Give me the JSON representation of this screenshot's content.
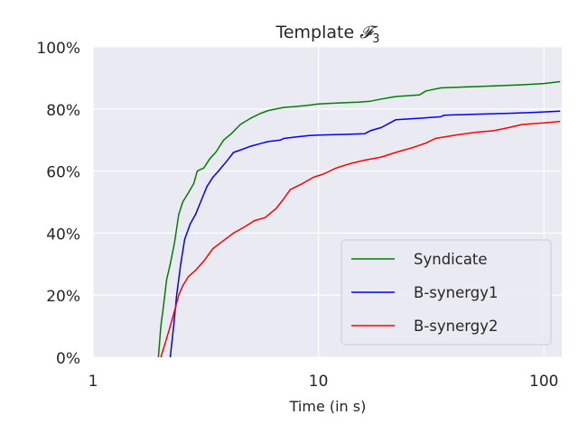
{
  "chart_data": {
    "type": "line",
    "title_main": "Template ",
    "title_math": "𝓕",
    "title_sub": "3",
    "xlabel": "Time (in s)",
    "ylabel": "",
    "xscale": "log",
    "xlim": [
      1,
      120
    ],
    "ylim": [
      0,
      100
    ],
    "x_ticks": [
      1,
      10,
      100
    ],
    "x_tick_labels": [
      "1",
      "10",
      "100"
    ],
    "y_ticks": [
      0,
      20,
      40,
      60,
      80,
      100
    ],
    "y_tick_labels": [
      "0%",
      "20%",
      "40%",
      "60%",
      "80%",
      "100%"
    ],
    "grid": true,
    "legend_position": "lower-right",
    "series": [
      {
        "name": "Syndicate",
        "color": "#008000",
        "x": [
          1.95,
          2.0,
          2.05,
          2.12,
          2.2,
          2.3,
          2.4,
          2.5,
          2.65,
          2.8,
          2.9,
          3.1,
          3.3,
          3.5,
          3.8,
          4.1,
          4.5,
          5.0,
          5.5,
          6.0,
          7.0,
          8.0,
          9.0,
          10.0,
          12.0,
          15.0,
          17.0,
          19.0,
          22.0,
          28.0,
          30.0,
          35.0,
          45.0,
          60.0,
          80.0,
          100.0,
          118.0
        ],
        "y": [
          0,
          10,
          16,
          25,
          30,
          37,
          46,
          50,
          53,
          56,
          60,
          61,
          64,
          66,
          70,
          72,
          75,
          77,
          78.5,
          79.5,
          80.5,
          80.8,
          81.2,
          81.6,
          81.9,
          82.2,
          82.5,
          83.2,
          84,
          84.5,
          85.8,
          86.8,
          87.1,
          87.4,
          87.8,
          88.2,
          88.8
        ]
      },
      {
        "name": "B-synergy1",
        "color": "#0000ff",
        "x": [
          2.2,
          2.28,
          2.35,
          2.45,
          2.55,
          2.7,
          2.85,
          3.0,
          3.2,
          3.4,
          3.6,
          3.9,
          4.2,
          4.6,
          5.0,
          5.5,
          6.0,
          6.8,
          7.0,
          8.0,
          9.0,
          10.0,
          13.0,
          16.0,
          17.0,
          19.0,
          22.0,
          28.0,
          35.0,
          36.0,
          50.0,
          70.0,
          90.0,
          118.0
        ],
        "y": [
          0,
          10,
          20,
          30,
          38,
          43,
          46,
          50,
          55,
          58,
          60,
          63,
          66,
          67,
          68,
          68.8,
          69.5,
          70,
          70.5,
          71,
          71.4,
          71.6,
          71.8,
          72,
          73,
          74,
          76.5,
          77,
          77.5,
          78,
          78.3,
          78.6,
          78.9,
          79.3
        ]
      },
      {
        "name": "B-synergy2",
        "color": "#ff0000",
        "x": [
          2.0,
          2.1,
          2.2,
          2.3,
          2.4,
          2.5,
          2.65,
          2.85,
          3.1,
          3.4,
          3.7,
          4.2,
          4.7,
          5.2,
          5.8,
          6.5,
          7.0,
          7.5,
          8.5,
          9.5,
          10.5,
          12.0,
          14.0,
          16.0,
          19.0,
          22.0,
          26.0,
          30.0,
          33.0,
          40.0,
          50.0,
          60.0,
          70.0,
          80.0,
          100.0,
          118.0
        ],
        "y": [
          0,
          5,
          10,
          15,
          20,
          23,
          26,
          28,
          31,
          35,
          37,
          40,
          42,
          44,
          45,
          48,
          51,
          54,
          56,
          58,
          59,
          61,
          62.5,
          63.5,
          64.5,
          66,
          67.5,
          69,
          70.5,
          71.5,
          72.5,
          73,
          74,
          75,
          75.5,
          76
        ]
      }
    ]
  }
}
